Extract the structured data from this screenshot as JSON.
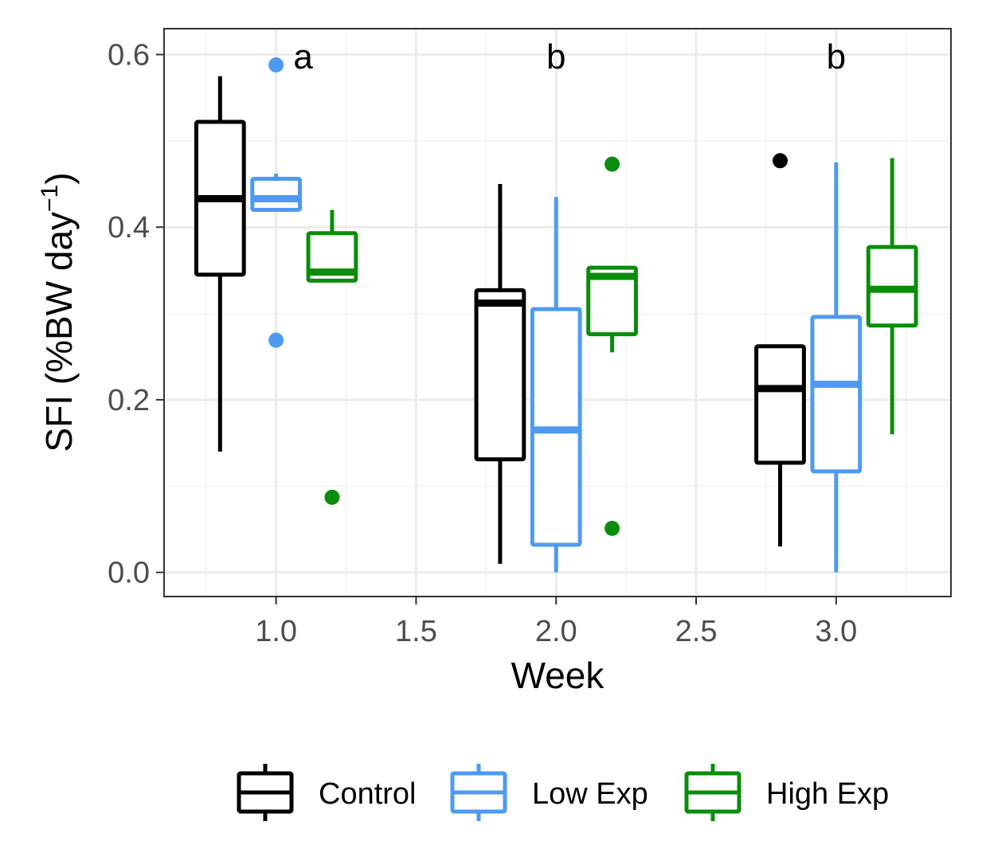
{
  "chart_data": {
    "type": "boxplot",
    "xlabel": "Week",
    "ylabel": "SFI (%BW  day",
    "ylabel_sup": "−1",
    "ylabel_close": ")",
    "xlim": [
      0.6,
      3.41
    ],
    "ylim": [
      -0.028,
      0.63
    ],
    "x_ticks": [
      1.0,
      1.5,
      2.0,
      2.5,
      3.0
    ],
    "x_tick_labels": [
      "1.0",
      "1.5",
      "2.0",
      "2.5",
      "3.0"
    ],
    "y_ticks": [
      0.0,
      0.2,
      0.4,
      0.6
    ],
    "y_tick_labels": [
      "0.0",
      "0.2",
      "0.4",
      "0.6"
    ],
    "grid": true,
    "legend_position": "bottom",
    "annotations": [
      {
        "x": 1,
        "text": "a"
      },
      {
        "x": 2,
        "text": "b"
      },
      {
        "x": 3,
        "text": "b"
      }
    ],
    "series": [
      {
        "name": "Control",
        "color": "#000000",
        "offset": -0.2,
        "boxes": [
          {
            "week": 1,
            "min": 0.14,
            "q1": 0.345,
            "median": 0.433,
            "q3": 0.522,
            "max": 0.575,
            "outliers": []
          },
          {
            "week": 2,
            "min": 0.01,
            "q1": 0.131,
            "median": 0.312,
            "q3": 0.327,
            "max": 0.45,
            "outliers": []
          },
          {
            "week": 3,
            "min": 0.03,
            "q1": 0.127,
            "median": 0.213,
            "q3": 0.262,
            "max": 0.262,
            "outliers": [
              0.477
            ]
          }
        ]
      },
      {
        "name": "Low Exp",
        "color": "#4e9af1",
        "offset": 0,
        "boxes": [
          {
            "week": 1,
            "min": 0.42,
            "q1": 0.42,
            "median": 0.433,
            "q3": 0.456,
            "max": 0.462,
            "outliers": [
              0.588,
              0.269
            ]
          },
          {
            "week": 2,
            "min": 0.0,
            "q1": 0.032,
            "median": 0.165,
            "q3": 0.305,
            "max": 0.435,
            "outliers": []
          },
          {
            "week": 3,
            "min": 0.0,
            "q1": 0.117,
            "median": 0.218,
            "q3": 0.296,
            "max": 0.475,
            "outliers": []
          }
        ]
      },
      {
        "name": "High Exp",
        "color": "#0a8d0a",
        "offset": 0.2,
        "boxes": [
          {
            "week": 1,
            "min": 0.338,
            "q1": 0.338,
            "median": 0.348,
            "q3": 0.393,
            "max": 0.42,
            "outliers": [
              0.087
            ]
          },
          {
            "week": 2,
            "min": 0.255,
            "q1": 0.276,
            "median": 0.343,
            "q3": 0.353,
            "max": 0.353,
            "outliers": [
              0.473,
              0.051
            ]
          },
          {
            "week": 3,
            "min": 0.16,
            "q1": 0.286,
            "median": 0.328,
            "q3": 0.377,
            "max": 0.48,
            "outliers": []
          }
        ]
      }
    ]
  }
}
